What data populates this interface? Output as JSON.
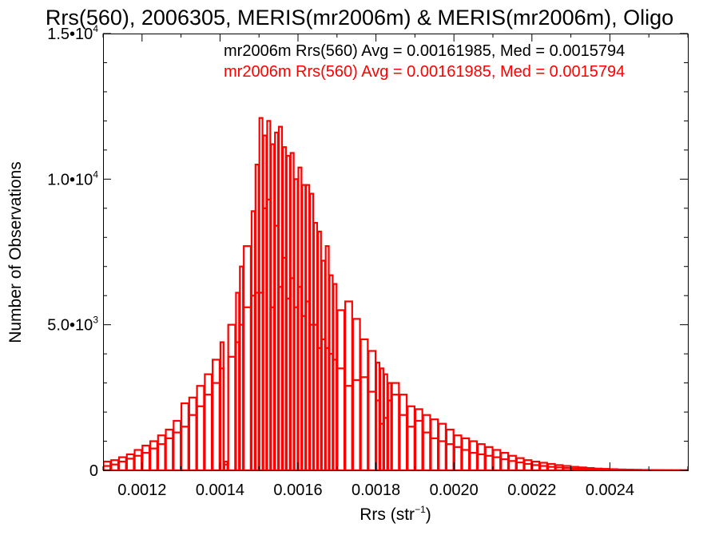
{
  "chart_data": {
    "type": "bar",
    "title": "Rrs(560), 2006305, MERIS(mr2006m) & MERIS(mr2006m), Oligo",
    "xlabel_main": "Rrs (str",
    "xlabel_exp": "−1",
    "xlabel_close": ")",
    "ylabel": "Number of Observations",
    "xlim": [
      0.0011,
      0.0026
    ],
    "ylim": [
      0,
      15000
    ],
    "x_ticks": [
      {
        "value": 0.0012,
        "label": "0.0012"
      },
      {
        "value": 0.0014,
        "label": "0.0014"
      },
      {
        "value": 0.0016,
        "label": "0.0016"
      },
      {
        "value": 0.0018,
        "label": "0.0018"
      },
      {
        "value": 0.002,
        "label": "0.0020"
      },
      {
        "value": 0.0022,
        "label": "0.0022"
      },
      {
        "value": 0.0024,
        "label": "0.0024"
      }
    ],
    "y_ticks": [
      {
        "value": 0,
        "label": "0",
        "exp": ""
      },
      {
        "value": 5000,
        "label": "5.0•10",
        "exp": "3"
      },
      {
        "value": 10000,
        "label": "1.0•10",
        "exp": "4"
      },
      {
        "value": 15000,
        "label": "1.5•10",
        "exp": "4"
      }
    ],
    "grid": false,
    "color": "#ff0000",
    "annotations": [
      {
        "text": "mr2006m Rrs(560) Avg = 0.00161985, Med = 0.0015794",
        "color": "#000000"
      },
      {
        "text": "mr2006m Rrs(560) Avg = 0.00161985, Med = 0.0015794",
        "color": "#ff0000"
      }
    ],
    "bins": [
      [
        0.0011,
        150,
        300
      ],
      [
        0.00112,
        200,
        350
      ],
      [
        0.00114,
        300,
        450
      ],
      [
        0.00116,
        400,
        550
      ],
      [
        0.00118,
        500,
        700
      ],
      [
        0.0012,
        600,
        850
      ],
      [
        0.00122,
        750,
        1000
      ],
      [
        0.00124,
        900,
        1200
      ],
      [
        0.00126,
        1100,
        1400
      ],
      [
        0.00128,
        1300,
        1700
      ],
      [
        0.0013,
        1500,
        2300
      ],
      [
        0.00132,
        1900,
        2500
      ],
      [
        0.00134,
        2200,
        2900
      ],
      [
        0.00136,
        2600,
        3300
      ],
      [
        0.00138,
        3000,
        3800
      ],
      [
        0.0014,
        3500,
        4400
      ],
      [
        0.00141,
        200,
        300
      ],
      [
        0.00142,
        3900,
        5000
      ],
      [
        0.00144,
        4400,
        6100
      ],
      [
        0.00145,
        5000,
        7000
      ],
      [
        0.00146,
        5600,
        7700
      ],
      [
        0.00148,
        6000,
        8900
      ],
      [
        0.00149,
        6100,
        10500
      ],
      [
        0.0015,
        6100,
        12100
      ],
      [
        0.00151,
        9000,
        11500
      ],
      [
        0.00152,
        9300,
        12000
      ],
      [
        0.00153,
        5600,
        11200
      ],
      [
        0.00154,
        8400,
        11600
      ],
      [
        0.00155,
        6300,
        11800
      ],
      [
        0.00156,
        7300,
        11100
      ],
      [
        0.00157,
        5900,
        10800
      ],
      [
        0.00158,
        6600,
        10900
      ],
      [
        0.00159,
        5600,
        10000
      ],
      [
        0.0016,
        6300,
        10400
      ],
      [
        0.00161,
        5300,
        9800
      ],
      [
        0.00162,
        5800,
        9800
      ],
      [
        0.00163,
        5000,
        9500
      ],
      [
        0.00164,
        5000,
        8500
      ],
      [
        0.00165,
        4200,
        8200
      ],
      [
        0.00166,
        4500,
        7200
      ],
      [
        0.00167,
        4200,
        7700
      ],
      [
        0.00168,
        4000,
        6700
      ],
      [
        0.00169,
        3800,
        6400
      ],
      [
        0.0017,
        3500,
        5500
      ],
      [
        0.00172,
        2900,
        5800
      ],
      [
        0.00174,
        3100,
        5200
      ],
      [
        0.00176,
        3200,
        4500
      ],
      [
        0.00178,
        2700,
        4100
      ],
      [
        0.0018,
        2400,
        3700
      ],
      [
        0.00181,
        1600,
        3500
      ],
      [
        0.00182,
        1800,
        3300
      ],
      [
        0.00183,
        2400,
        3000
      ],
      [
        0.00184,
        2600,
        3000
      ],
      [
        0.00186,
        1900,
        2600
      ],
      [
        0.00188,
        1500,
        2200
      ],
      [
        0.0019,
        1700,
        2100
      ],
      [
        0.00192,
        1300,
        1900
      ],
      [
        0.00194,
        1100,
        1750
      ],
      [
        0.00196,
        1000,
        1600
      ],
      [
        0.00198,
        900,
        1400
      ],
      [
        0.002,
        800,
        1200
      ],
      [
        0.00202,
        700,
        1100
      ],
      [
        0.00204,
        600,
        1000
      ],
      [
        0.00206,
        550,
        900
      ],
      [
        0.00208,
        500,
        800
      ],
      [
        0.0021,
        450,
        700
      ],
      [
        0.00212,
        380,
        600
      ],
      [
        0.00214,
        320,
        500
      ],
      [
        0.00216,
        270,
        420
      ],
      [
        0.00218,
        220,
        350
      ],
      [
        0.0022,
        180,
        300
      ],
      [
        0.00222,
        150,
        260
      ],
      [
        0.00224,
        120,
        220
      ],
      [
        0.00226,
        100,
        180
      ],
      [
        0.00228,
        80,
        150
      ],
      [
        0.0023,
        60,
        120
      ],
      [
        0.00232,
        50,
        100
      ],
      [
        0.00234,
        40,
        80
      ],
      [
        0.00236,
        30,
        60
      ],
      [
        0.00238,
        25,
        50
      ],
      [
        0.0024,
        20,
        40
      ],
      [
        0.00242,
        15,
        30
      ],
      [
        0.00244,
        12,
        25
      ],
      [
        0.00246,
        10,
        20
      ],
      [
        0.00248,
        8,
        15
      ],
      [
        0.0025,
        6,
        12
      ],
      [
        0.00252,
        5,
        10
      ],
      [
        0.00254,
        4,
        8
      ],
      [
        0.00256,
        3,
        6
      ],
      [
        0.00258,
        2,
        4
      ]
    ]
  }
}
